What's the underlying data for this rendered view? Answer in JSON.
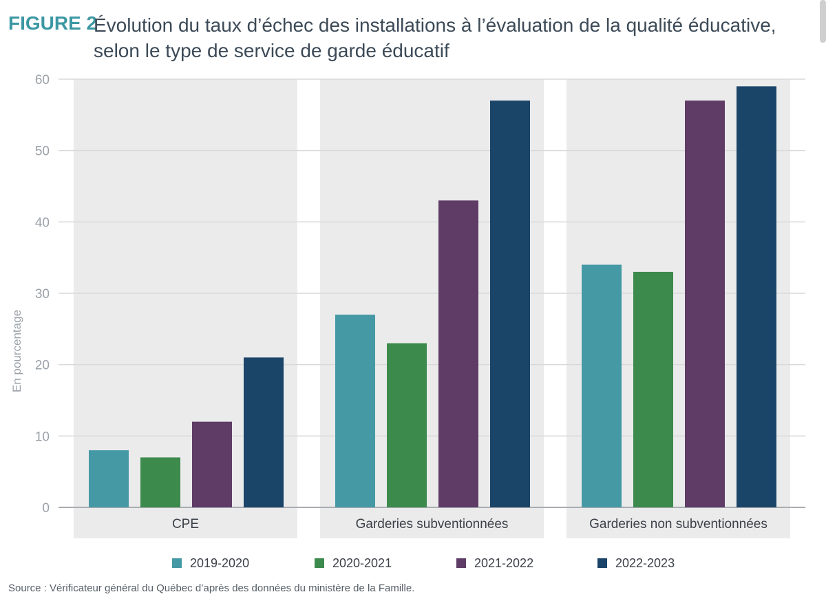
{
  "figure": {
    "label": "FIGURE 2",
    "title": "Évolution du taux d’échec des installations à l’évaluation de la qualité éducative, selon le type de service de garde éducatif",
    "source": "Source : Vérificateur général du Québec d’après des données du ministère de la Famille."
  },
  "chart_data": {
    "type": "bar",
    "title": "Évolution du taux d’échec des installations à l’évaluation de la qualité éducative, selon le type de service de garde éducatif",
    "xlabel": "",
    "ylabel": "En pourcentage",
    "ylim": [
      0,
      60
    ],
    "yticks": [
      "0",
      "10",
      "20",
      "30",
      "40",
      "50",
      "60"
    ],
    "grid": true,
    "legend_position": "bottom",
    "categories": [
      "CPE",
      "Garderies subventionnées",
      "Garderies non subventionnées"
    ],
    "series": [
      {
        "name": "2019-2020",
        "color": "#4599a5",
        "values": [
          8,
          27,
          34
        ]
      },
      {
        "name": "2020-2021",
        "color": "#3d8a4d",
        "values": [
          7,
          23,
          33
        ]
      },
      {
        "name": "2021-2022",
        "color": "#5e3c66",
        "values": [
          12,
          43,
          57
        ]
      },
      {
        "name": "2022-2023",
        "color": "#1b4469",
        "values": [
          21,
          57,
          59
        ]
      }
    ]
  }
}
